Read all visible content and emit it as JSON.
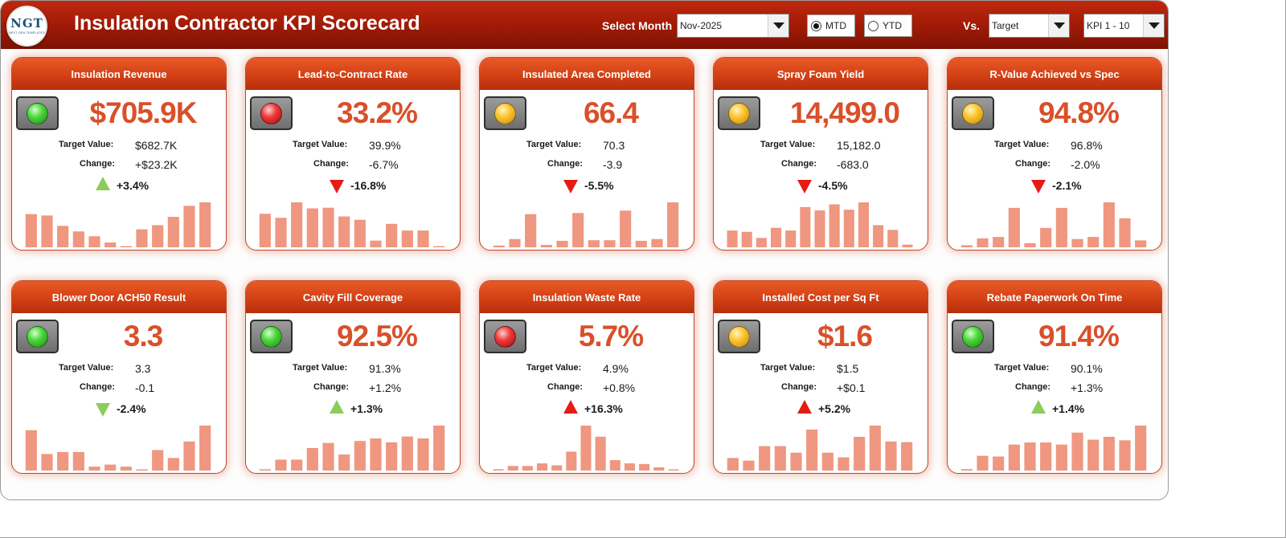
{
  "header": {
    "logo_text": "NGT",
    "logo_subtext": "NEXT GEN TEMPLATES",
    "title": "Insulation Contractor KPI Scorecard",
    "select_month_label": "Select Month",
    "month_value": "Nov-2025",
    "mtd_label": "MTD",
    "ytd_label": "YTD",
    "period_selected": "MTD",
    "vs_label": "Vs.",
    "vs_value": "Target",
    "kpi_range_value": "KPI 1 - 10"
  },
  "colors": {
    "good": "#8ccc5a",
    "bad": "#e51c16",
    "bar": "#ef9780",
    "accent": "#d9502a"
  },
  "labels": {
    "target": "Target Value:",
    "change": "Change:"
  },
  "kpis": [
    {
      "title": "Insulation Revenue",
      "value": "$705.9K",
      "target": "$682.7K",
      "change": "+$23.2K",
      "pct": "+3.4%",
      "dir": "up",
      "status": "good",
      "light": "green",
      "spark": [
        48,
        46,
        31,
        23,
        16,
        7,
        0,
        26,
        32,
        44,
        60,
        65
      ]
    },
    {
      "title": "Lead-to-Contract Rate",
      "value": "33.2%",
      "target": "39.9%",
      "change": "-6.7%",
      "pct": "-16.8%",
      "dir": "down",
      "status": "bad",
      "light": "red",
      "spark": [
        50,
        44,
        67,
        58,
        59,
        46,
        41,
        10,
        35,
        25,
        25,
        0
      ]
    },
    {
      "title": "Insulated Area Completed",
      "value": "66.4",
      "target": "70.3",
      "change": "-3.9",
      "pct": "-5.5%",
      "dir": "down",
      "status": "bad",
      "light": "yellow",
      "spark": [
        3,
        14,
        56,
        4,
        11,
        58,
        12,
        12,
        62,
        11,
        14,
        76
      ]
    },
    {
      "title": "Spray Foam Yield",
      "value": "14,499.0",
      "target": "15,182.0",
      "change": "-683.0",
      "pct": "-4.5%",
      "dir": "down",
      "status": "bad",
      "light": "yellow",
      "spark": [
        25,
        23,
        14,
        29,
        25,
        60,
        55,
        64,
        56,
        67,
        33,
        26,
        4
      ]
    },
    {
      "title": "R-Value Achieved vs Spec",
      "value": "94.8%",
      "target": "96.8%",
      "change": "-2.0%",
      "pct": "-2.1%",
      "dir": "down",
      "status": "bad",
      "light": "yellow",
      "spark": [
        3,
        13,
        15,
        57,
        6,
        28,
        57,
        12,
        15,
        65,
        42,
        10
      ]
    },
    {
      "title": "Blower Door ACH50 Result",
      "value": "3.3",
      "target": "3.3",
      "change": "-0.1",
      "pct": "-2.4%",
      "dir": "down",
      "status": "good",
      "light": "green",
      "spark": [
        61,
        25,
        28,
        28,
        6,
        9,
        6,
        0,
        31,
        19,
        44,
        68
      ]
    },
    {
      "title": "Cavity Fill Coverage",
      "value": "92.5%",
      "target": "91.3%",
      "change": "+1.2%",
      "pct": "+1.3%",
      "dir": "up",
      "status": "good",
      "light": "green",
      "spark": [
        2,
        17,
        17,
        35,
        43,
        25,
        46,
        50,
        44,
        53,
        50,
        70
      ]
    },
    {
      "title": "Insulation Waste Rate",
      "value": "5.7%",
      "target": "4.9%",
      "change": "+0.8%",
      "pct": "+16.3%",
      "dir": "up",
      "status": "bad",
      "light": "red",
      "spark": [
        2,
        7,
        7,
        11,
        8,
        29,
        69,
        52,
        16,
        11,
        10,
        5,
        1
      ]
    },
    {
      "title": "Installed Cost per Sq Ft",
      "value": "$1.6",
      "target": "$1.5",
      "change": "+$0.1",
      "pct": "+5.2%",
      "dir": "up",
      "status": "bad",
      "light": "yellow",
      "spark": [
        19,
        15,
        37,
        37,
        27,
        62,
        27,
        20,
        51,
        68,
        44,
        43
      ]
    },
    {
      "title": "Rebate Paperwork On Time",
      "value": "91.4%",
      "target": "90.1%",
      "change": "+1.3%",
      "pct": "+1.4%",
      "dir": "up",
      "status": "good",
      "light": "green",
      "spark": [
        2,
        21,
        20,
        37,
        40,
        40,
        37,
        54,
        44,
        48,
        43,
        64
      ]
    }
  ]
}
